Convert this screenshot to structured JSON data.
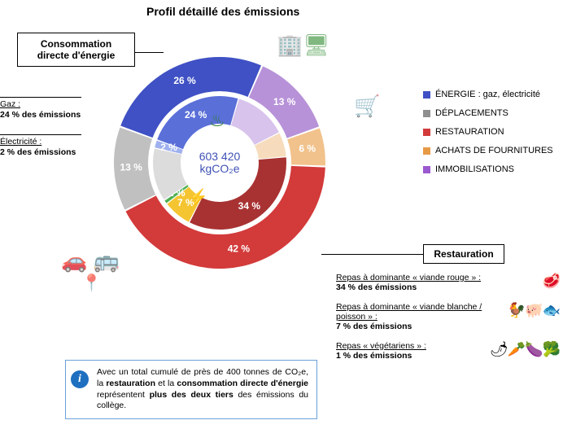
{
  "title": "Profil détaillé des émissions",
  "center": {
    "value": "603 420",
    "unit": "kgCO₂e"
  },
  "outer_ring": {
    "segments": [
      {
        "key": "energie",
        "pct": 26,
        "color": "#3f51c4",
        "label": "26 %"
      },
      {
        "key": "immobilisations",
        "pct": 13,
        "color": "#b792d8",
        "label": "13 %"
      },
      {
        "key": "achats",
        "pct": 6,
        "color": "#f2c28c",
        "label": "6 %"
      },
      {
        "key": "restauration",
        "pct": 42,
        "color": "#d33a3a",
        "label": "42 %"
      },
      {
        "key": "deplacements",
        "pct": 13,
        "color": "#c0c0c0",
        "label": "13 %"
      }
    ]
  },
  "inner_ring": {
    "segments": [
      {
        "key": "gaz",
        "pct": 24,
        "color": "#5a6fd8",
        "label": "24 %"
      },
      {
        "key": "immo_in",
        "pct": 13,
        "color": "#d8c3ec",
        "label": ""
      },
      {
        "key": "achats_in",
        "pct": 6,
        "color": "#f6dcbc",
        "label": ""
      },
      {
        "key": "viande_rouge",
        "pct": 34,
        "color": "#a83232",
        "label": "34 %"
      },
      {
        "key": "viande_blanche",
        "pct": 7,
        "color": "#f5c531",
        "label": "7 %"
      },
      {
        "key": "vegetarien",
        "pct": 1,
        "color": "#4caf50",
        "label": "1 %"
      },
      {
        "key": "depl_in",
        "pct": 13,
        "color": "#dcdcdc",
        "label": ""
      },
      {
        "key": "elec",
        "pct": 2,
        "color": "#9fb0ef",
        "label": "2 %"
      }
    ]
  },
  "legend": [
    {
      "color": "#3f51c4",
      "text": "ÉNERGIE : gaz, électricité"
    },
    {
      "color": "#8f8f8f",
      "text": "DÉPLACEMENTS"
    },
    {
      "color": "#d33a3a",
      "text": "RESTAURATION"
    },
    {
      "color": "#e69a45",
      "text": "ACHATS DE FOURNITURES"
    },
    {
      "color": "#9b59d0",
      "text": "IMMOBILISATIONS"
    }
  ],
  "callout_energy": {
    "title": "Consommation directe d'énergie"
  },
  "energy_details": [
    {
      "label": "Gaz :",
      "value": "24 % des émissions"
    },
    {
      "label": "Électricité :",
      "value": "2 % des émissions"
    }
  ],
  "callout_rest": {
    "title": "Restauration"
  },
  "meals": [
    {
      "label": "Repas à dominante « viande rouge » :",
      "value": "34 % des émissions",
      "icons": "🥩"
    },
    {
      "label": "Repas à dominante « viande blanche / poisson » :",
      "value": "7 % des émissions",
      "icons": "🐓🐖🐟"
    },
    {
      "label": "Repas « végétariens » :",
      "value": "1 % des émissions",
      "icons": "🌶🥕🍆🥦"
    }
  ],
  "infobox": {
    "text": "Avec un total cumulé de près de 400 tonnes de CO₂e, la restauration et la consommation directe d'énergie représentent plus des deux tiers des émissions du collège."
  },
  "style": {
    "outerR": 130,
    "outerInnerR": 88,
    "innerR": 82,
    "innerInnerR": 48,
    "start_angle": -160,
    "gap_deg": 1,
    "title_fontsize": 14
  }
}
